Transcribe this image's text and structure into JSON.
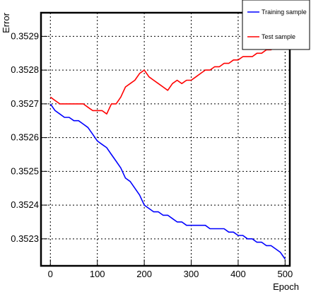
{
  "chart_data": {
    "type": "line",
    "xlabel": "Epoch",
    "ylabel": "Error",
    "xlim": [
      -20,
      510
    ],
    "ylim": [
      0.35222,
      0.35297
    ],
    "x_ticks": [
      0,
      100,
      200,
      300,
      400,
      500
    ],
    "y_ticks": [
      0.3523,
      0.3524,
      0.3525,
      0.3526,
      0.3527,
      0.3528,
      0.3529
    ],
    "grid": true,
    "legend_position": "top-right",
    "series": [
      {
        "name": "Training sample",
        "color": "#0000ff",
        "x": [
          0,
          10,
          20,
          30,
          40,
          50,
          60,
          70,
          80,
          90,
          100,
          110,
          120,
          130,
          140,
          150,
          160,
          170,
          180,
          190,
          200,
          210,
          220,
          230,
          240,
          250,
          260,
          270,
          280,
          290,
          300,
          310,
          320,
          330,
          340,
          350,
          360,
          370,
          380,
          390,
          400,
          410,
          420,
          430,
          440,
          450,
          460,
          470,
          480,
          490,
          500
        ],
        "values": [
          0.3527,
          0.35268,
          0.35267,
          0.35266,
          0.35266,
          0.35265,
          0.35265,
          0.35264,
          0.35263,
          0.35261,
          0.35259,
          0.35258,
          0.35257,
          0.35255,
          0.35253,
          0.35251,
          0.35248,
          0.35247,
          0.35245,
          0.35243,
          0.3524,
          0.35239,
          0.35238,
          0.35238,
          0.35237,
          0.35237,
          0.35236,
          0.35235,
          0.35235,
          0.35234,
          0.35234,
          0.35234,
          0.35234,
          0.35234,
          0.35233,
          0.35233,
          0.35233,
          0.35233,
          0.35232,
          0.35232,
          0.35231,
          0.35231,
          0.3523,
          0.3523,
          0.35229,
          0.35229,
          0.35228,
          0.35228,
          0.35227,
          0.35226,
          0.35224
        ]
      },
      {
        "name": "Test sample",
        "color": "#ff0000",
        "x": [
          0,
          10,
          20,
          30,
          40,
          50,
          60,
          70,
          80,
          90,
          100,
          110,
          120,
          130,
          140,
          150,
          160,
          170,
          180,
          190,
          200,
          210,
          220,
          230,
          240,
          250,
          260,
          270,
          280,
          290,
          300,
          310,
          320,
          330,
          340,
          350,
          360,
          370,
          380,
          390,
          400,
          410,
          420,
          430,
          440,
          450,
          460,
          470,
          480,
          490,
          500
        ],
        "values": [
          0.35272,
          0.35271,
          0.3527,
          0.3527,
          0.3527,
          0.3527,
          0.3527,
          0.3527,
          0.35269,
          0.35268,
          0.35268,
          0.35268,
          0.35267,
          0.3527,
          0.3527,
          0.35272,
          0.35275,
          0.35276,
          0.35277,
          0.35279,
          0.3528,
          0.35278,
          0.35277,
          0.35276,
          0.35275,
          0.35274,
          0.35276,
          0.35277,
          0.35276,
          0.35277,
          0.35277,
          0.35278,
          0.35279,
          0.3528,
          0.3528,
          0.35281,
          0.35281,
          0.35282,
          0.35282,
          0.35283,
          0.35283,
          0.35284,
          0.35284,
          0.35284,
          0.35285,
          0.35285,
          0.35286,
          0.35286,
          0.35287,
          0.35288,
          0.35289
        ]
      }
    ]
  }
}
